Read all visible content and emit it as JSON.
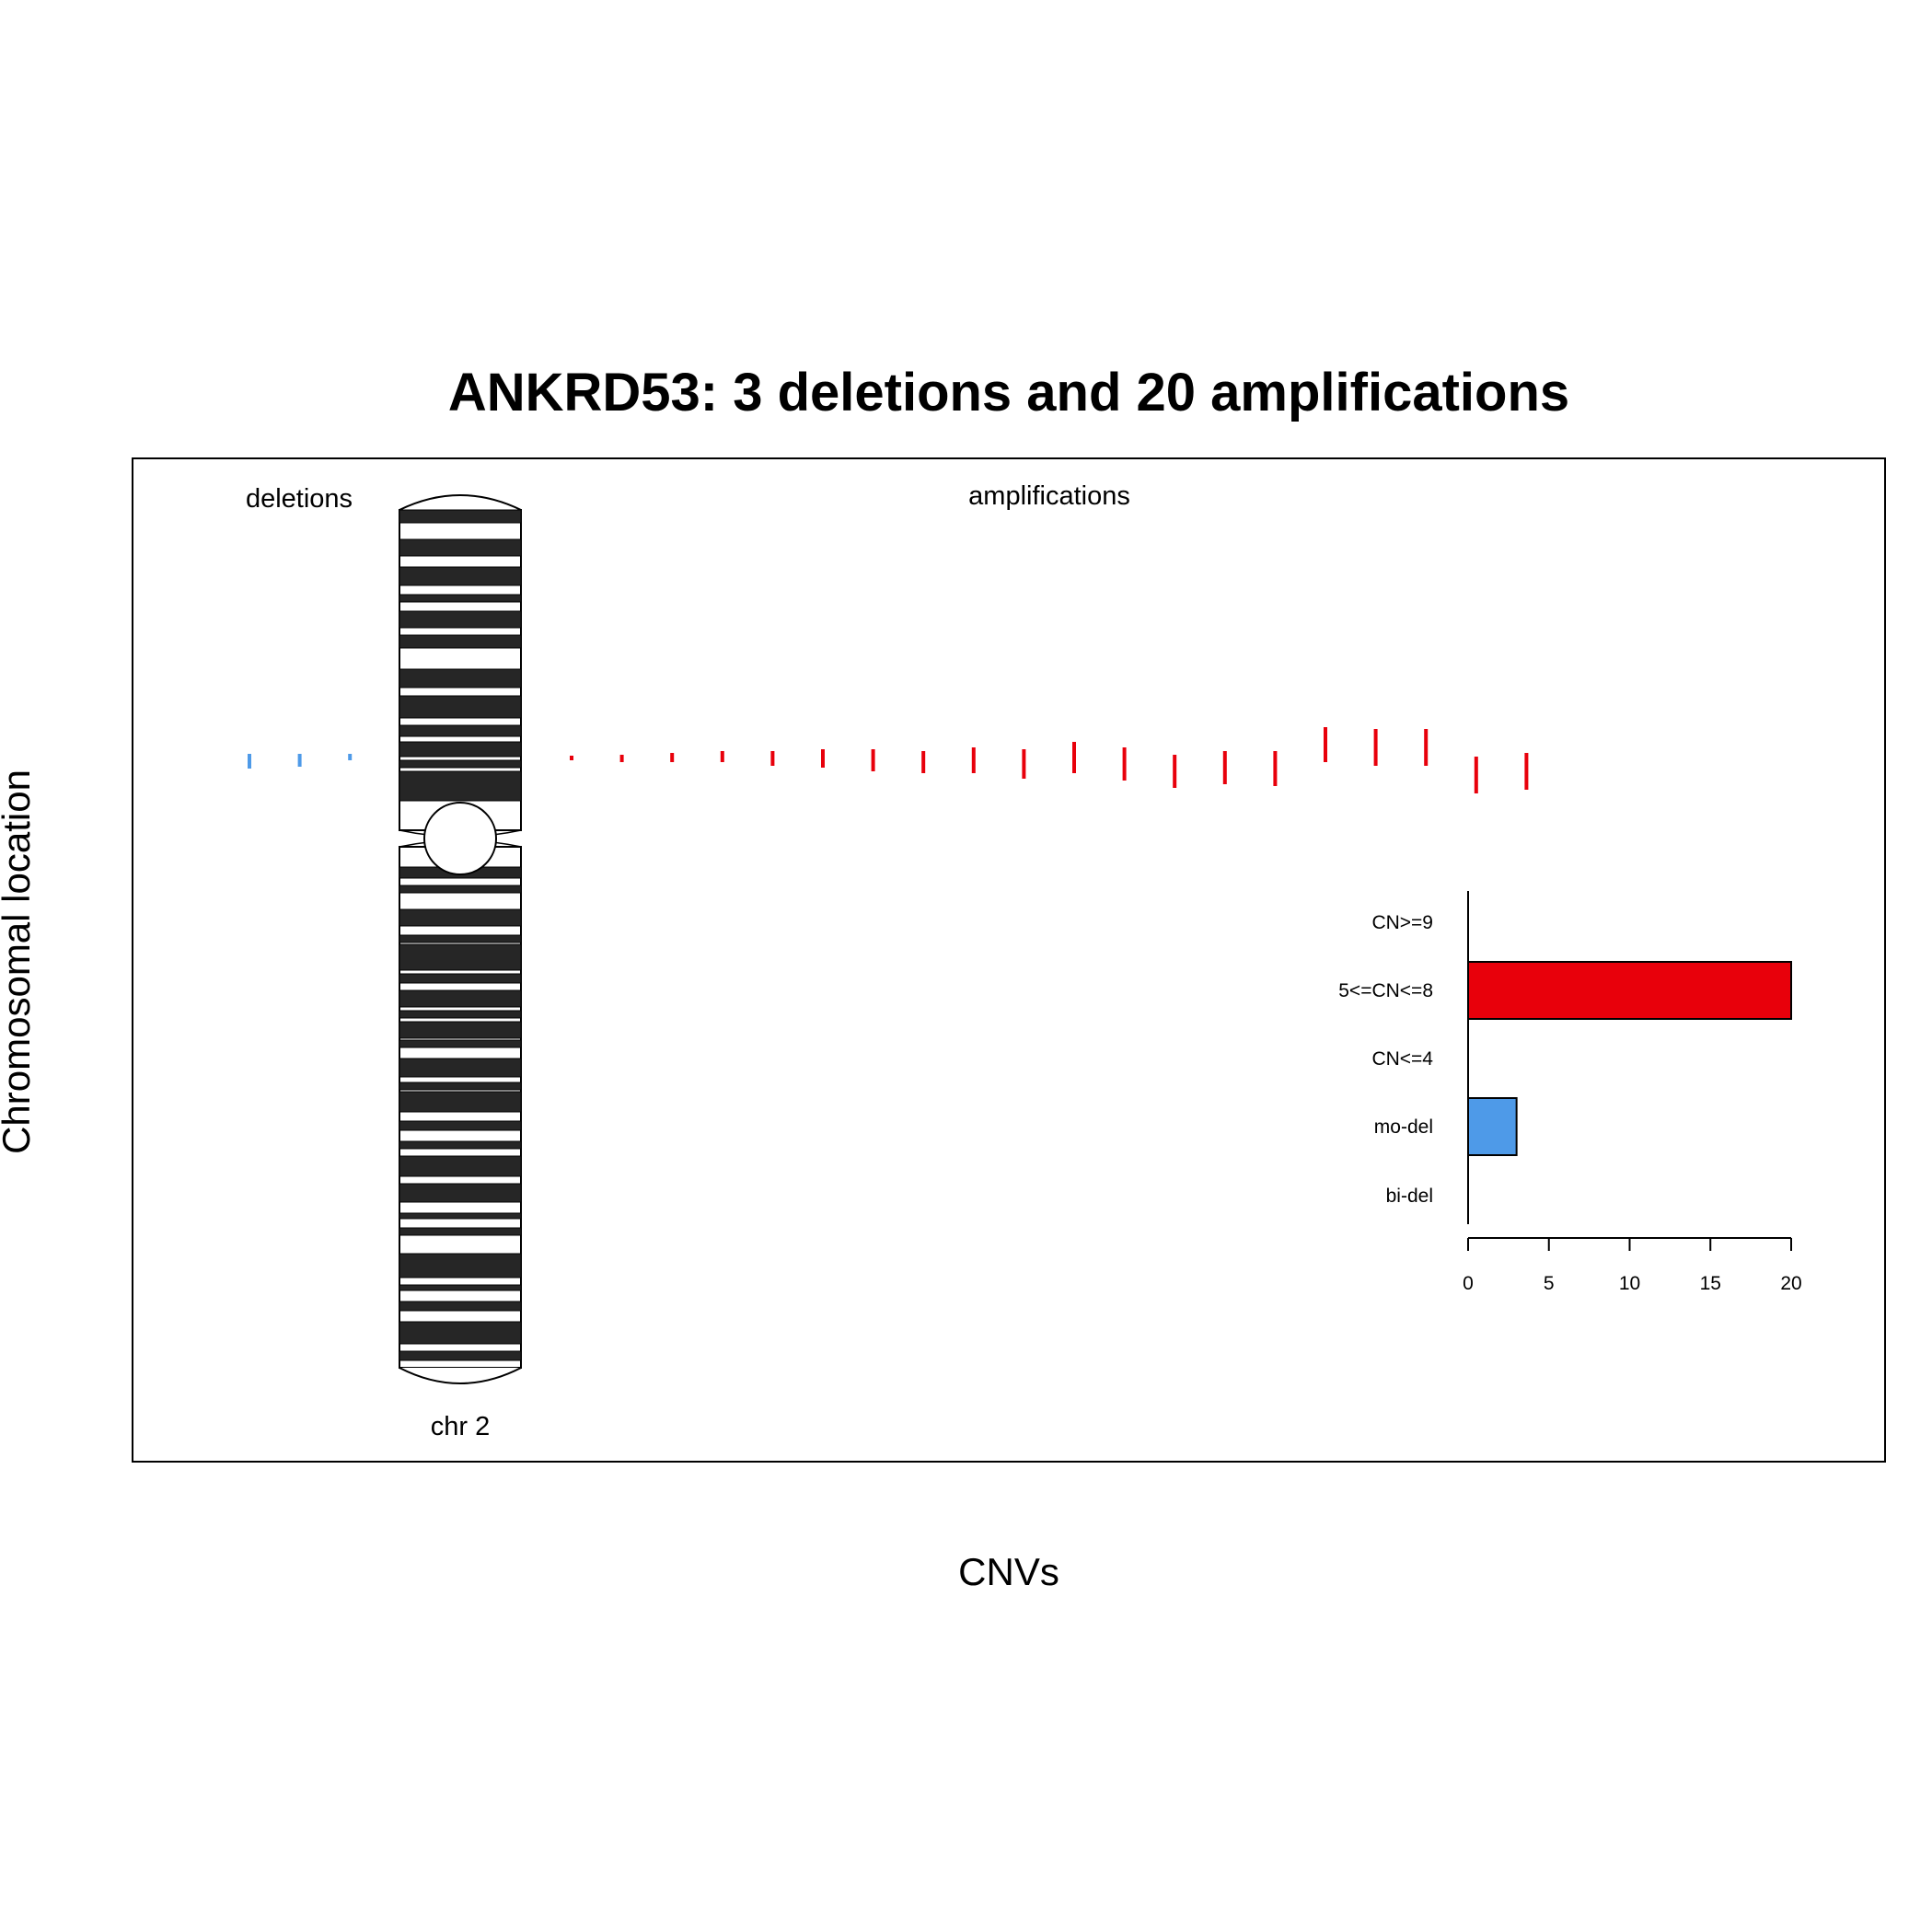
{
  "chart_data": {
    "type": "bar",
    "title": "ANKRD53: 3 deletions and 20 amplifications",
    "xlabel": "CNVs",
    "ylabel": "Chromosomal location",
    "panel_labels": {
      "deletions": "deletions",
      "amplifications": "amplifications"
    },
    "chromosome_label": "chr 2",
    "segments": {
      "deletions": {
        "count": 3,
        "color": "#4e9ae8"
      },
      "amplifications": {
        "count": 20,
        "color": "#e8000b"
      }
    },
    "summary": {
      "categories": [
        "CN>=9",
        "5<=CN<=8",
        "CN<=4",
        "mo-del",
        "bi-del"
      ],
      "values": [
        0,
        20,
        0,
        3,
        0
      ],
      "colors": [
        "#e8000b",
        "#e8000b",
        "#e8000b",
        "#4e9ae8",
        "#4e9ae8"
      ],
      "xlim": [
        0,
        20
      ],
      "xticks": [
        "0",
        "5",
        "10",
        "15",
        "20"
      ]
    }
  }
}
